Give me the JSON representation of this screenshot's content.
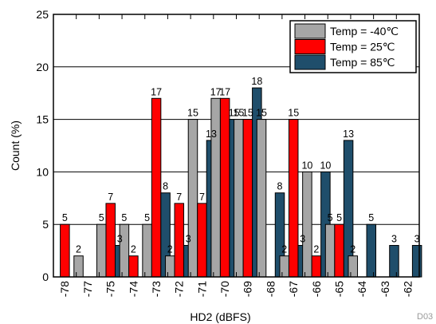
{
  "chart_data": {
    "type": "bar",
    "xlabel": "HD2 (dBFS)",
    "ylabel": "Count (%)",
    "ylim": [
      0,
      25
    ],
    "yticks": [
      0,
      5,
      10,
      15,
      20,
      25
    ],
    "grid": true,
    "legend_position": "top-right",
    "categories": [
      "-78",
      "-77",
      "-75",
      "-74",
      "-73",
      "-72",
      "-71",
      "-70",
      "-69",
      "-68",
      "-67",
      "-66",
      "-65",
      "-64",
      "-63",
      "-62"
    ],
    "series": [
      {
        "name": "Temp = -40℃",
        "color": "#a6a6a6",
        "values": [
          0,
          2,
          5,
          5,
          5,
          2,
          15,
          17,
          15,
          15,
          2,
          10,
          5,
          2,
          0,
          0
        ]
      },
      {
        "name": "Temp = 25℃",
        "color": "#ff0000",
        "values": [
          5,
          0,
          7,
          2,
          17,
          7,
          7,
          17,
          15,
          0,
          15,
          2,
          5,
          0,
          0,
          0
        ]
      },
      {
        "name": "Temp = 85℃",
        "color": "#1f4e6b",
        "values": [
          0,
          0,
          3,
          0,
          8,
          3,
          13,
          15,
          18,
          8,
          3,
          10,
          13,
          5,
          3,
          3
        ]
      }
    ],
    "figure_code": "D03"
  }
}
